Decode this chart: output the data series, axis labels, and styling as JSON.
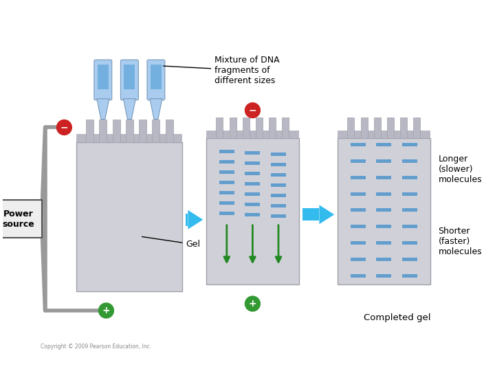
{
  "bg_color": "#ffffff",
  "gel_color": "#d0d0d8",
  "gel_top_color": "#b8b8c4",
  "gel_edge_color": "#a0a0aa",
  "band_color": "#5599cc",
  "arrow_color": "#33bbee",
  "green_arrow_color": "#228822",
  "wire_color": "#999999",
  "neg_color": "#cc2222",
  "pos_color": "#339933",
  "label_color": "#000000",
  "title_text": "Mixture of DNA\nfragments of\ndifferent sizes",
  "power_source_text": "Power\nsource",
  "gel_label_text": "Gel",
  "longer_text": "Longer\n(slower)\nmolecules",
  "shorter_text": "Shorter\n(faster)\nmolecules",
  "completed_text": "Completed gel",
  "copyright_text": "Copyright © 2009 Pearson Education, Inc.",
  "pipette_body_color": "#aaccee",
  "pipette_liquid_color": "#66aadd",
  "pipette_edge_color": "#7799bb"
}
